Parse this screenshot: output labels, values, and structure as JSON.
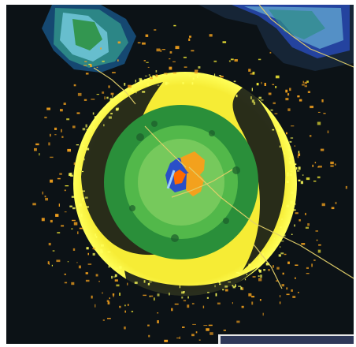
{
  "display": {
    "background_color": "#0c1216",
    "panel_color": "#2e3858",
    "reflectivity_palette": {
      "outer_ring": "#f6ec35",
      "outer_ring_bright": "#ffff59",
      "mid_green": "#2a8f3a",
      "inner_green": "#52b84a",
      "core_green": "#76c95c",
      "orange": "#f3a11d",
      "blue": "#2a4fc8",
      "light_blue": "#7bd0e6",
      "teal": "#2f8d88"
    },
    "overlay_lines": "boundaries-and-radials"
  }
}
